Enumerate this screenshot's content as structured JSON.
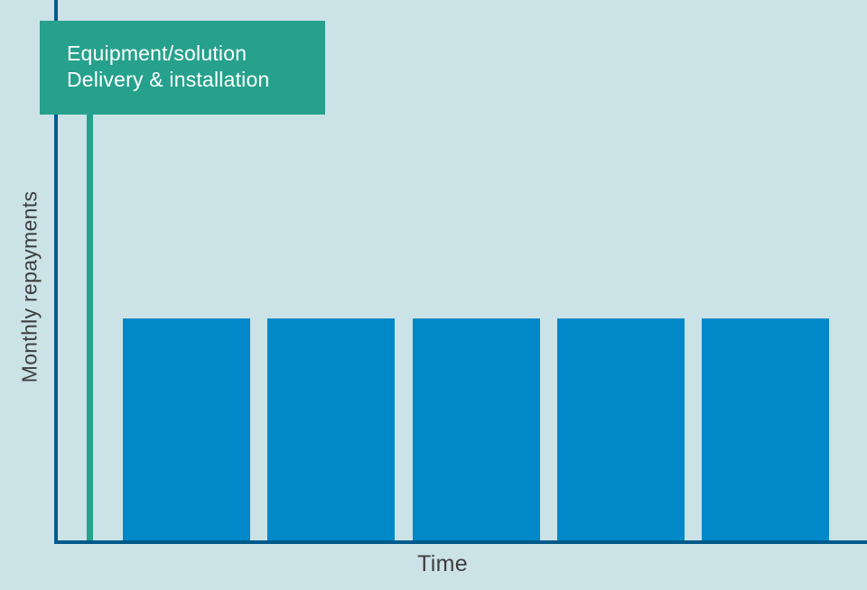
{
  "page": {
    "background_color": "#cbe2e7"
  },
  "axes": {
    "axis_color": "#005a8c",
    "label_color": "#3e3e3e"
  },
  "annotation": {
    "line1": "Equipment/solution",
    "line2": "Delivery & installation",
    "box_color": "#26a18c",
    "text_color": "#ffffff",
    "marker_line_color": "#26a18c"
  },
  "chart_data": {
    "type": "bar",
    "title": "",
    "xlabel": "Time",
    "ylabel": "Monthly repayments",
    "categories": [
      "",
      "",
      "",
      "",
      ""
    ],
    "values": [
      0.41,
      0.41,
      0.41,
      0.41,
      0.41
    ],
    "ylim": [
      0,
      1
    ],
    "grid": false,
    "legend": "none",
    "tick_labels": "none",
    "bar_color": "#0088c8",
    "annotation_event": {
      "label": "Equipment/solution Delivery & installation",
      "position": "start-of-time-axis",
      "marker": "vertical-line",
      "marker_color": "#26a18c"
    }
  }
}
